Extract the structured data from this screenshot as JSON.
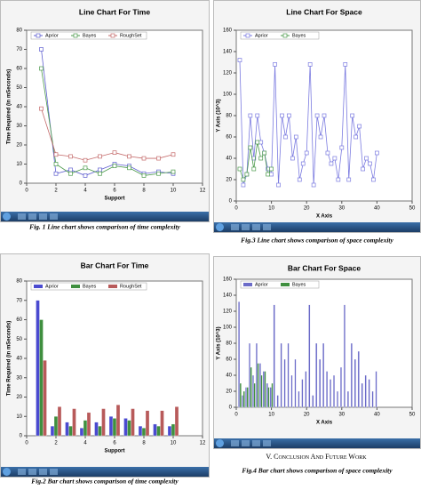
{
  "chart_data": [
    {
      "type": "line",
      "title": "Line Chart For Time",
      "x_label": "Support",
      "y_label": "Time Required (in mSeconds)",
      "caption": "Fig. 1 Line chart shows comparison of time complexity",
      "x": [
        1,
        2,
        3,
        4,
        5,
        6,
        7,
        8,
        9,
        10
      ],
      "series": [
        {
          "name": "Aprior",
          "color": "#5f5fd0",
          "values": [
            70,
            5,
            7,
            4,
            7,
            10,
            9,
            5,
            6,
            5
          ]
        },
        {
          "name": "Bayes",
          "color": "#4c9a4c",
          "values": [
            60,
            10,
            5,
            8,
            5,
            9,
            8,
            4,
            5,
            6
          ]
        },
        {
          "name": "RoughSet",
          "color": "#c46a6a",
          "values": [
            39,
            15,
            14,
            12,
            14,
            16,
            14,
            13,
            13,
            15
          ]
        }
      ],
      "xlim": [
        0,
        12
      ],
      "xticks": [
        0,
        2,
        4,
        6,
        8,
        10,
        12
      ],
      "ylim": [
        0,
        80
      ],
      "yticks": [
        0,
        10,
        20,
        30,
        40,
        50,
        60,
        70,
        80
      ],
      "legend": "top"
    },
    {
      "type": "line",
      "title": "Line Chart For Space",
      "x_label": "X Axis",
      "y_label": "Y Axis (10^3)",
      "caption": "Fig.3 Line chart shows comparison of space complexity",
      "x": [
        1,
        2,
        3,
        4,
        5,
        6,
        7,
        8,
        9,
        10,
        11,
        12,
        13,
        14,
        15,
        16,
        17,
        18,
        19,
        20,
        21,
        22,
        23,
        24,
        25,
        26,
        27,
        28,
        29,
        30,
        31,
        32,
        33,
        34,
        35,
        36,
        37,
        38,
        39,
        40
      ],
      "series": [
        {
          "name": "Aprior",
          "color": "#7b7be0",
          "values": [
            132,
            15,
            25,
            80,
            40,
            80,
            55,
            45,
            30,
            25,
            128,
            15,
            80,
            60,
            80,
            40,
            60,
            20,
            35,
            45,
            128,
            15,
            80,
            60,
            80,
            45,
            35,
            40,
            20,
            50,
            128,
            20,
            80,
            60,
            70,
            30,
            40,
            35,
            20,
            45
          ]
        },
        {
          "name": "Bayes",
          "color": "#4c9a4c",
          "values": [
            30,
            20,
            25,
            50,
            30,
            55,
            40,
            45,
            25,
            30,
            null,
            null,
            null,
            null,
            null,
            null,
            null,
            null,
            null,
            null,
            null,
            null,
            null,
            null,
            null,
            null,
            null,
            null,
            null,
            null,
            null,
            null,
            null,
            null,
            null,
            null,
            null,
            null,
            null,
            null
          ]
        }
      ],
      "xlim": [
        0,
        50
      ],
      "xticks": [
        0,
        10,
        20,
        30,
        40,
        50
      ],
      "ylim": [
        0,
        160
      ],
      "yticks": [
        0,
        20,
        40,
        60,
        80,
        100,
        120,
        140,
        160
      ],
      "legend": "top"
    },
    {
      "type": "bar",
      "title": "Bar Chart For Time",
      "x_label": "Support",
      "y_label": "Time Required (in mSeconds)",
      "caption": "Fig.2 Bar chart shows comparison of time complexity",
      "x": [
        1,
        2,
        3,
        4,
        5,
        6,
        7,
        8,
        9,
        10
      ],
      "series": [
        {
          "name": "Aprior",
          "color": "#4a4ad0",
          "values": [
            70,
            5,
            7,
            4,
            7,
            10,
            9,
            5,
            6,
            5
          ]
        },
        {
          "name": "Bayes",
          "color": "#3f8f3f",
          "values": [
            60,
            10,
            5,
            8,
            5,
            9,
            8,
            4,
            5,
            6
          ]
        },
        {
          "name": "RoughSet",
          "color": "#b85a5a",
          "values": [
            39,
            15,
            14,
            12,
            14,
            16,
            14,
            13,
            13,
            15
          ]
        }
      ],
      "xlim": [
        0,
        12
      ],
      "xticks": [
        0,
        2,
        4,
        6,
        8,
        10,
        12
      ],
      "ylim": [
        0,
        80
      ],
      "yticks": [
        0,
        10,
        20,
        30,
        40,
        50,
        60,
        70,
        80
      ],
      "legend": "top"
    },
    {
      "type": "bar",
      "title": "Bar Chart For Space",
      "x_label": "X Axis",
      "y_label": "Y Axis (10^3)",
      "caption": "Fig.4 Bar chart shows comparison of space complexity",
      "x": [
        1,
        2,
        3,
        4,
        5,
        6,
        7,
        8,
        9,
        10,
        11,
        12,
        13,
        14,
        15,
        16,
        17,
        18,
        19,
        20,
        21,
        22,
        23,
        24,
        25,
        26,
        27,
        28,
        29,
        30,
        31,
        32,
        33,
        34,
        35,
        36,
        37,
        38,
        39,
        40
      ],
      "series": [
        {
          "name": "Aprior",
          "color": "#6b6bc8",
          "values": [
            132,
            15,
            25,
            80,
            40,
            80,
            55,
            45,
            30,
            25,
            128,
            15,
            80,
            60,
            80,
            40,
            60,
            20,
            35,
            45,
            128,
            15,
            80,
            60,
            80,
            45,
            35,
            40,
            20,
            50,
            128,
            20,
            80,
            60,
            70,
            30,
            40,
            35,
            20,
            45
          ]
        },
        {
          "name": "Bayes",
          "color": "#3f8f3f",
          "values": [
            30,
            20,
            25,
            50,
            30,
            55,
            40,
            45,
            25,
            30,
            null,
            null,
            null,
            null,
            null,
            null,
            null,
            null,
            null,
            null,
            null,
            null,
            null,
            null,
            null,
            null,
            null,
            null,
            null,
            null,
            null,
            null,
            null,
            null,
            null,
            null,
            null,
            null,
            null,
            null
          ]
        }
      ],
      "xlim": [
        0,
        50
      ],
      "xticks": [
        0,
        10,
        20,
        30,
        40,
        50
      ],
      "ylim": [
        0,
        160
      ],
      "yticks": [
        0,
        20,
        40,
        60,
        80,
        100,
        120,
        140,
        160
      ],
      "legend": "top"
    }
  ],
  "section_heading": "V. Conclusion And Future Work"
}
